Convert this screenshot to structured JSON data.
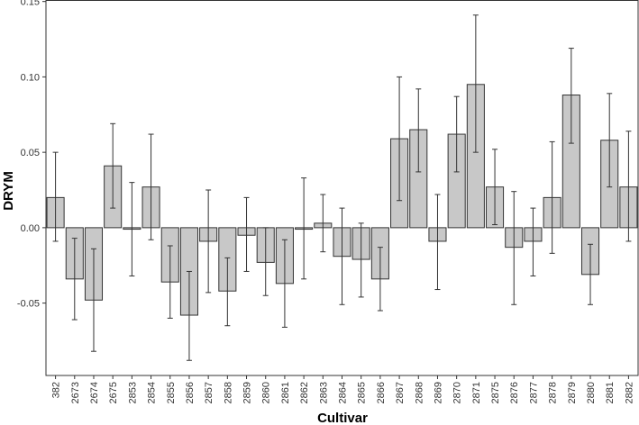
{
  "chart_data": {
    "type": "bar",
    "title": "",
    "xlabel": "Cultivar",
    "ylabel": "DRYM",
    "ylim": [
      -0.098,
      0.151
    ],
    "yticks": [
      -0.05,
      0.0,
      0.05,
      0.1,
      0.15
    ],
    "ytick_labels": [
      "-0.05",
      "0.00",
      "0.05",
      "0.10",
      "0.15"
    ],
    "grid": false,
    "legend": "none",
    "bar_color": "#c8c8c8",
    "bar_edge_color": "#333333",
    "categories": [
      "382",
      "2673",
      "2674",
      "2675",
      "2853",
      "2854",
      "2855",
      "2856",
      "2857",
      "2858",
      "2859",
      "2860",
      "2861",
      "2862",
      "2863",
      "2864",
      "2865",
      "2866",
      "2867",
      "2868",
      "2869",
      "2870",
      "2871",
      "2875",
      "2876",
      "2877",
      "2878",
      "2879",
      "2880",
      "2881",
      "2882"
    ],
    "values": [
      0.02,
      -0.034,
      -0.048,
      0.041,
      -0.001,
      0.027,
      -0.036,
      -0.058,
      -0.009,
      -0.042,
      -0.005,
      -0.023,
      -0.037,
      -0.001,
      0.003,
      -0.019,
      -0.021,
      -0.034,
      0.059,
      0.065,
      -0.009,
      0.062,
      0.095,
      0.027,
      -0.013,
      -0.009,
      0.02,
      0.088,
      -0.031,
      0.058,
      0.027
    ],
    "error_low": [
      -0.009,
      -0.061,
      -0.082,
      0.013,
      -0.032,
      -0.008,
      -0.06,
      -0.088,
      -0.043,
      -0.065,
      -0.029,
      -0.045,
      -0.066,
      -0.034,
      -0.016,
      -0.051,
      -0.046,
      -0.055,
      0.018,
      0.037,
      -0.041,
      0.037,
      0.05,
      0.002,
      -0.051,
      -0.032,
      -0.017,
      0.056,
      -0.051,
      0.027,
      -0.009
    ],
    "error_high": [
      0.05,
      -0.007,
      -0.014,
      0.069,
      0.03,
      0.062,
      -0.012,
      -0.029,
      0.025,
      -0.02,
      0.02,
      0.0,
      -0.008,
      0.033,
      0.022,
      0.013,
      0.003,
      -0.013,
      0.1,
      0.092,
      0.022,
      0.087,
      0.141,
      0.052,
      0.024,
      0.013,
      0.057,
      0.119,
      -0.011,
      0.089,
      0.064
    ]
  }
}
